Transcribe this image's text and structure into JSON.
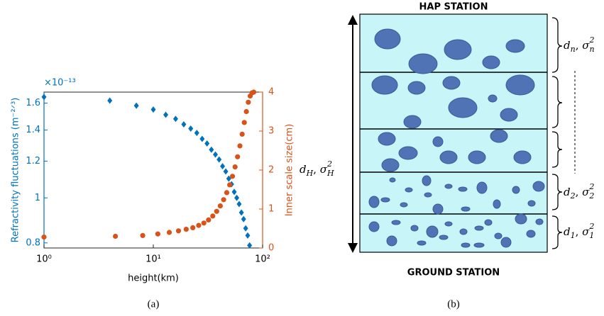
{
  "chart_data": {
    "type": "scatter",
    "caption": "(a)",
    "xlabel": "height(km)",
    "ylabel": "Refractivity fluctuations (m⁻²ᐟ³)",
    "y2label": "Inner scale size(cm)",
    "yexponent": "×10⁻¹³",
    "xscale": "log",
    "yscale": "log",
    "xlim": [
      1,
      100
    ],
    "xticks": [
      {
        "value": 1,
        "label": "10⁰"
      },
      {
        "value": 10,
        "label": "10¹"
      },
      {
        "value": 100,
        "label": "10²"
      }
    ],
    "ylim": [
      0.78,
      1.69
    ],
    "yticks": [
      0.8,
      1,
      1.2,
      1.4,
      1.6
    ],
    "y2lim": [
      0,
      4
    ],
    "y2ticks": [
      0,
      1,
      2,
      3,
      4
    ],
    "series": [
      {
        "color": "#0072bd",
        "marker": "diamond",
        "x": [
          1,
          4,
          7,
          10,
          13,
          16,
          19,
          22,
          25,
          28,
          31,
          34,
          37,
          40,
          43,
          46,
          49,
          52,
          55,
          58,
          61,
          64,
          67,
          70,
          73,
          76
        ],
        "values": [
          1.65,
          1.62,
          1.58,
          1.55,
          1.51,
          1.48,
          1.44,
          1.41,
          1.38,
          1.34,
          1.31,
          1.27,
          1.24,
          1.21,
          1.17,
          1.14,
          1.1,
          1.07,
          1.03,
          1.0,
          0.97,
          0.93,
          0.9,
          0.86,
          0.83,
          0.79
        ]
      },
      {
        "color": "#d95319",
        "marker": "circle",
        "axis": "y2",
        "x": [
          1,
          4.5,
          8,
          11,
          14,
          17,
          20,
          23,
          26,
          29,
          32,
          35,
          38,
          41,
          44,
          47,
          50,
          53,
          56,
          59,
          62,
          65,
          68,
          71,
          74,
          77,
          80,
          83
        ],
        "values": [
          0.28,
          0.3,
          0.32,
          0.36,
          0.4,
          0.44,
          0.48,
          0.52,
          0.58,
          0.64,
          0.72,
          0.82,
          0.94,
          1.08,
          1.24,
          1.42,
          1.62,
          1.84,
          2.08,
          2.34,
          2.62,
          2.92,
          3.22,
          3.5,
          3.74,
          3.9,
          3.98,
          4.0
        ]
      }
    ]
  },
  "diagram": {
    "caption": "(b)",
    "top": "HAP STATION",
    "bottom": "GROUND STATION",
    "total": {
      "depth": {
        "symbol": "d",
        "index": "H"
      },
      "variance": {
        "symbol": "σ",
        "index": "H",
        "power": "2"
      }
    },
    "layers": [
      {
        "depth": {
          "symbol": "d",
          "index": "n"
        },
        "variance": {
          "symbol": "σ",
          "index": "n",
          "power": "2"
        }
      },
      {
        "depth": {
          "symbol": "d",
          "index": "2"
        },
        "variance": {
          "symbol": "σ",
          "index": "2",
          "power": "2"
        }
      },
      {
        "depth": {
          "symbol": "d",
          "index": "1"
        },
        "variance": {
          "symbol": "σ",
          "index": "1",
          "power": "2"
        }
      }
    ]
  }
}
